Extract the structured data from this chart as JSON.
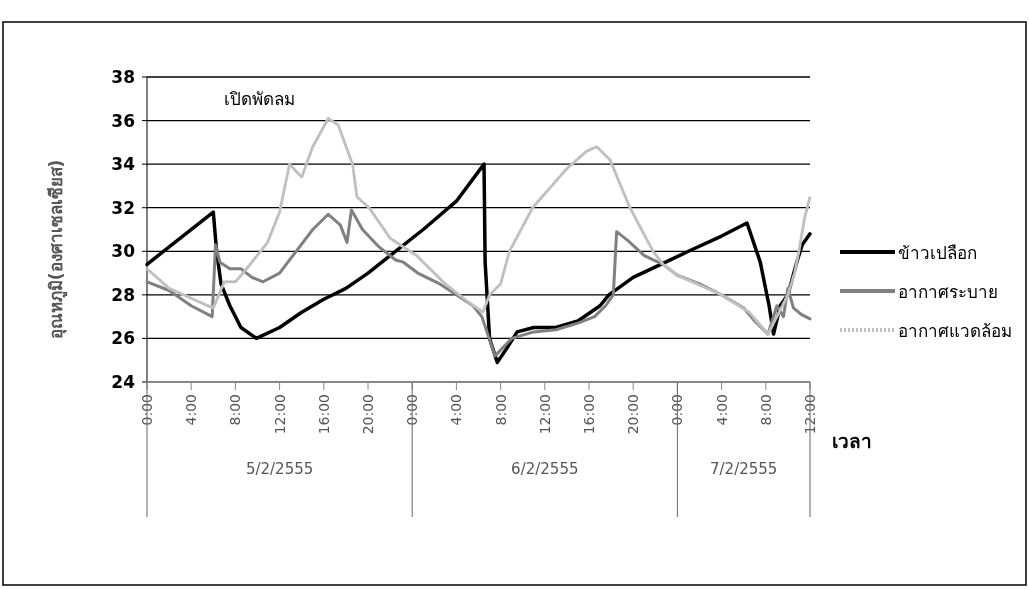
{
  "chart_data": {
    "type": "line",
    "ylabel": "อุณหภูมิ(องศาเซลเซียส)",
    "xlabel": "เวลา",
    "annotations": [
      "เปิดพัดลม"
    ],
    "xlim": [
      "2555-02-05T00:00",
      "2555-02-07T12:00"
    ],
    "xticks": [
      {
        "value": "2555-02-05T00:00",
        "label": "0:00"
      },
      {
        "value": "2555-02-05T04:00",
        "label": "4:00"
      },
      {
        "value": "2555-02-05T08:00",
        "label": "8:00"
      },
      {
        "value": "2555-02-05T12:00",
        "label": "12:00"
      },
      {
        "value": "2555-02-05T16:00",
        "label": "16:00"
      },
      {
        "value": "2555-02-05T20:00",
        "label": "20:00"
      },
      {
        "value": "2555-02-06T00:00",
        "label": "0:00"
      },
      {
        "value": "2555-02-06T04:00",
        "label": "4:00"
      },
      {
        "value": "2555-02-06T08:00",
        "label": "8:00"
      },
      {
        "value": "2555-02-06T12:00",
        "label": "12:00"
      },
      {
        "value": "2555-02-06T16:00",
        "label": "16:00"
      },
      {
        "value": "2555-02-06T20:00",
        "label": "20:00"
      },
      {
        "value": "2555-02-07T00:00",
        "label": "0:00"
      },
      {
        "value": "2555-02-07T04:00",
        "label": "4:00"
      },
      {
        "value": "2555-02-07T08:00",
        "label": "8:00"
      },
      {
        "value": "2555-02-07T12:00",
        "label": "12:00"
      }
    ],
    "x2lim": [
      "2555-02-05T00:00",
      "2555-02-07T12:00"
    ],
    "x2ticks": [
      {
        "value": "2555-02-05T00:00",
        "label": null
      },
      {
        "value": "2555-02-05T12:00",
        "label": "5/2/2555"
      },
      {
        "value": "2555-02-06T00:00",
        "label": null
      },
      {
        "value": "2555-02-06T12:00",
        "label": "6/2/2555"
      },
      {
        "value": "2555-02-07T00:00",
        "label": null
      },
      {
        "value": "2555-02-07T06:00",
        "label": "7/2/2555"
      },
      {
        "value": "2555-02-07T12:00",
        "label": null
      }
    ],
    "ylim": [
      24,
      38
    ],
    "yticks": [
      24,
      26,
      28,
      30,
      32,
      34,
      36,
      38
    ],
    "grid": "y",
    "legend": "right",
    "series": [
      {
        "name": "ข้าวเปลือก",
        "color": "#000000",
        "line_style": "solid",
        "x": [
          "2555-02-05T00:00",
          "2555-02-05T06:00",
          "2555-02-05T06:18",
          "2555-02-05T06:42",
          "2555-02-05T07:30",
          "2555-02-05T08:30",
          "2555-02-05T09:54",
          "2555-02-05T12:00",
          "2555-02-05T14:00",
          "2555-02-05T16:00",
          "2555-02-05T18:00",
          "2555-02-05T20:00",
          "2555-02-05T22:00",
          "2555-02-06T01:00",
          "2555-02-06T04:00",
          "2555-02-06T06:30",
          "2555-02-06T06:36",
          "2555-02-06T07:00",
          "2555-02-06T07:42",
          "2555-02-06T08:30",
          "2555-02-06T09:30",
          "2555-02-06T11:00",
          "2555-02-06T13:00",
          "2555-02-06T15:00",
          "2555-02-06T17:00",
          "2555-02-06T17:48",
          "2555-02-06T20:00",
          "2555-02-06T22:30",
          "2555-02-07T01:00",
          "2555-02-07T04:00",
          "2555-02-07T06:18",
          "2555-02-07T07:30",
          "2555-02-07T08:18",
          "2555-02-07T08:42",
          "2555-02-07T09:18",
          "2555-02-07T10:00",
          "2555-02-07T10:48",
          "2555-02-07T11:18",
          "2555-02-07T12:00"
        ],
        "values": [
          29.4,
          31.8,
          30.0,
          28.5,
          27.5,
          26.5,
          26.0,
          26.5,
          27.2,
          27.8,
          28.3,
          29.0,
          29.8,
          31.0,
          32.3,
          34.0,
          29.5,
          26.0,
          24.9,
          25.5,
          26.3,
          26.5,
          26.5,
          26.8,
          27.5,
          28.0,
          28.8,
          29.4,
          30.0,
          30.7,
          31.3,
          29.5,
          27.5,
          26.2,
          27.5,
          28.0,
          29.5,
          30.3,
          30.8
        ]
      },
      {
        "name": "อากาศระบาย",
        "color": "#808080",
        "line_style": "solid",
        "x": [
          "2555-02-05T00:00",
          "2555-02-05T02:00",
          "2555-02-05T04:00",
          "2555-02-05T05:54",
          "2555-02-05T06:12",
          "2555-02-05T06:36",
          "2555-02-05T07:30",
          "2555-02-05T08:30",
          "2555-02-05T09:30",
          "2555-02-05T10:30",
          "2555-02-05T12:00",
          "2555-02-05T13:30",
          "2555-02-05T15:00",
          "2555-02-05T16:24",
          "2555-02-05T17:30",
          "2555-02-05T18:06",
          "2555-02-05T18:30",
          "2555-02-05T19:30",
          "2555-02-05T21:00",
          "2555-02-05T22:30",
          "2555-02-05T23:12",
          "2555-02-06T00:30",
          "2555-02-06T02:30",
          "2555-02-06T04:00",
          "2555-02-06T05:30",
          "2555-02-06T06:18",
          "2555-02-06T07:30",
          "2555-02-06T09:00",
          "2555-02-06T11:00",
          "2555-02-06T13:00",
          "2555-02-06T15:00",
          "2555-02-06T16:30",
          "2555-02-06T17:30",
          "2555-02-06T18:12",
          "2555-02-06T18:30",
          "2555-02-06T19:30",
          "2555-02-06T21:00",
          "2555-02-06T22:42",
          "2555-02-07T00:00",
          "2555-02-07T02:00",
          "2555-02-07T04:00",
          "2555-02-07T06:00",
          "2555-02-07T07:00",
          "2555-02-07T08:12",
          "2555-02-07T09:00",
          "2555-02-07T09:36",
          "2555-02-07T10:00",
          "2555-02-07T10:30",
          "2555-02-07T11:12",
          "2555-02-07T12:00"
        ],
        "values": [
          28.6,
          28.2,
          27.5,
          27.0,
          30.3,
          29.5,
          29.2,
          29.2,
          28.8,
          28.6,
          29.0,
          30.0,
          31.0,
          31.7,
          31.2,
          30.4,
          31.9,
          31.0,
          30.2,
          29.6,
          29.5,
          29.0,
          28.5,
          28.0,
          27.5,
          27.0,
          25.2,
          26.0,
          26.3,
          26.4,
          26.7,
          27.0,
          27.5,
          28.0,
          30.9,
          30.5,
          29.8,
          29.4,
          28.9,
          28.5,
          28.0,
          27.4,
          26.8,
          26.2,
          27.5,
          27.0,
          28.3,
          27.4,
          27.1,
          26.9
        ]
      },
      {
        "name": "อากาศแวดล้อม",
        "color": "#c0c0c0",
        "line_style": "dotted",
        "x": [
          "2555-02-05T00:00",
          "2555-02-05T02:00",
          "2555-02-05T05:30",
          "2555-02-05T06:00",
          "2555-02-05T07:00",
          "2555-02-05T08:00",
          "2555-02-05T08:42",
          "2555-02-05T10:54",
          "2555-02-05T12:00",
          "2555-02-05T12:54",
          "2555-02-05T14:00",
          "2555-02-05T15:00",
          "2555-02-05T16:24",
          "2555-02-05T17:18",
          "2555-02-05T18:36",
          "2555-02-05T19:00",
          "2555-02-05T20:06",
          "2555-02-05T22:00",
          "2555-02-06T00:24",
          "2555-02-06T03:00",
          "2555-02-06T05:00",
          "2555-02-06T06:24",
          "2555-02-06T07:00",
          "2555-02-06T08:00",
          "2555-02-06T08:48",
          "2555-02-06T10:54",
          "2555-02-06T14:00",
          "2555-02-06T15:48",
          "2555-02-06T16:42",
          "2555-02-06T17:54",
          "2555-02-06T19:42",
          "2555-02-06T21:48",
          "2555-02-06T22:42",
          "2555-02-07T00:00",
          "2555-02-07T04:00",
          "2555-02-07T06:30",
          "2555-02-07T08:12",
          "2555-02-07T09:00",
          "2555-02-07T10:00",
          "2555-02-07T10:36",
          "2555-02-07T11:00",
          "2555-02-07T11:30",
          "2555-02-07T12:00"
        ],
        "values": [
          29.2,
          28.3,
          27.5,
          27.4,
          28.6,
          28.6,
          29.0,
          30.4,
          31.8,
          34.0,
          33.4,
          34.8,
          36.1,
          35.8,
          34.0,
          32.5,
          32.0,
          30.6,
          29.8,
          28.5,
          27.7,
          27.2,
          28.0,
          28.5,
          30.0,
          32.0,
          33.8,
          34.6,
          34.8,
          34.2,
          32.0,
          30.0,
          29.4,
          28.9,
          28.0,
          27.2,
          26.2,
          27.0,
          28.0,
          29.0,
          30.0,
          31.5,
          32.5
        ]
      }
    ]
  }
}
